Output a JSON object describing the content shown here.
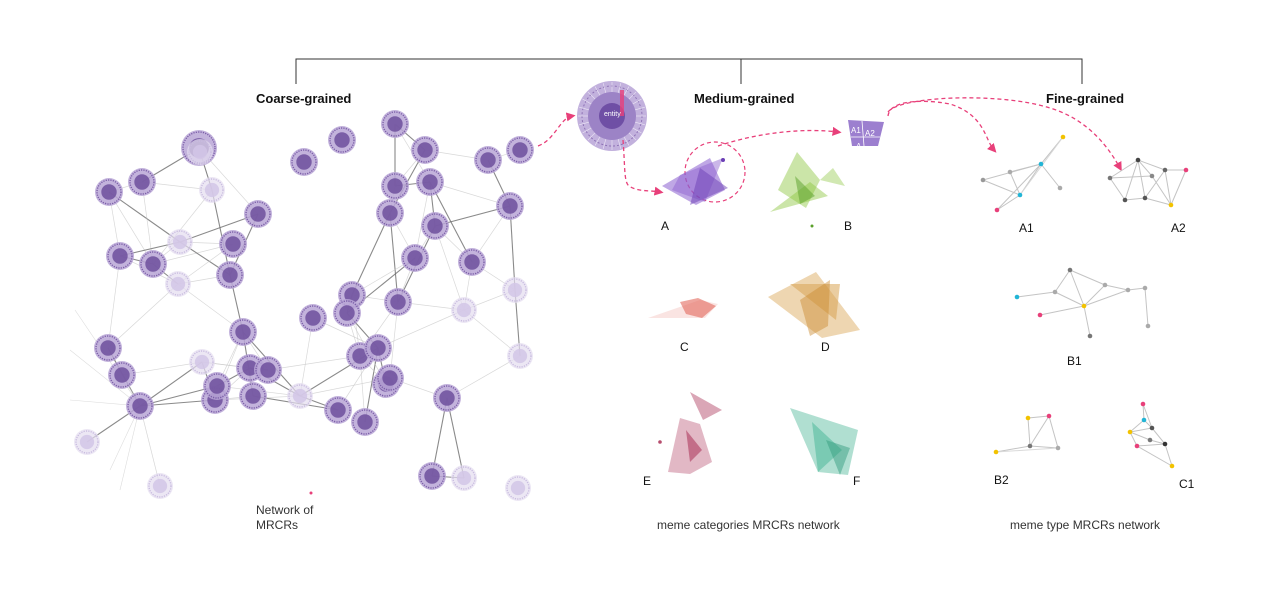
{
  "headers": {
    "coarse": "Coarse-grained",
    "medium": "Medium-grained",
    "fine": "Fine-grained"
  },
  "captions": {
    "network_line1": "Network of",
    "network_line2": "MRCRs",
    "meme_categories": "meme categories MRCRs network",
    "meme_type": "meme type MRCRs network"
  },
  "glyph": {
    "center": "entity",
    "segments": [
      "A1",
      "A2",
      "A"
    ]
  },
  "medium_labels": [
    "A",
    "B",
    "C",
    "D",
    "E",
    "F"
  ],
  "fine_labels": [
    "A1",
    "A2",
    "B1",
    "B2",
    "C1"
  ],
  "colors": {
    "node": "#8e72b5",
    "arrow": "#e8407a",
    "category_A": "#8b5fcf",
    "category_B": "#8cc63f",
    "category_C": "#e2695e",
    "category_D": "#d9a453",
    "category_E": "#b64d6e",
    "category_F": "#4fb89a"
  }
}
